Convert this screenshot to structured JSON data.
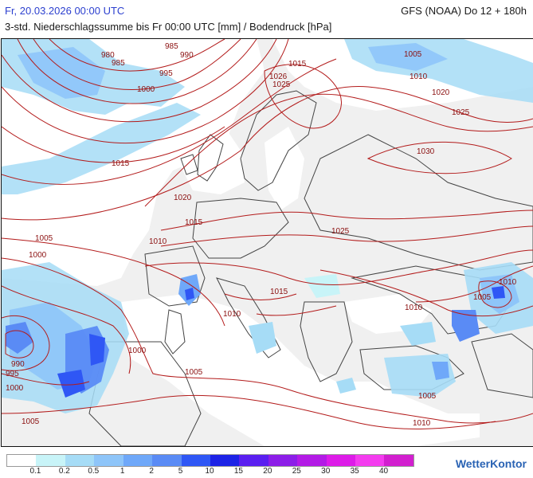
{
  "header": {
    "date": "Fr, 20.03.2026 00:00 UTC",
    "model": "GFS (NOAA) Do 12 + 180h",
    "description": "3-std. Niederschlagssumme bis Fr 00:00 UTC [mm] / Bodendruck [hPa]"
  },
  "map": {
    "isobar_color": "#b31b1b",
    "land_color": "#f0f0f0",
    "sea_color": "#ffffff",
    "isobar_labels": [
      "980",
      "985",
      "985",
      "990",
      "995",
      "1000",
      "1005",
      "1010",
      "1015",
      "1020",
      "1025",
      "1026",
      "1025",
      "1030",
      "1015",
      "1020",
      "1025",
      "1015",
      "1010",
      "1005",
      "1000",
      "990",
      "995",
      "1000",
      "1000",
      "1005",
      "1005",
      "1010",
      "1010",
      "1015",
      "1005",
      "1010",
      "1005",
      "1010"
    ]
  },
  "legend": {
    "values": [
      "0.1",
      "0.2",
      "0.5",
      "1",
      "2",
      "5",
      "10",
      "15",
      "20",
      "25",
      "30",
      "35",
      "40"
    ],
    "colors": [
      "#ffffff",
      "#c8f4f8",
      "#a6dcf6",
      "#8ec5f9",
      "#6fa8f9",
      "#5a8bf5",
      "#2f57f5",
      "#1d23e6",
      "#5a1ff0",
      "#8c1ee8",
      "#b31be6",
      "#dd1ce8",
      "#f43cef",
      "#d21fcf"
    ]
  },
  "logo": {
    "text": "WetterKontor"
  }
}
